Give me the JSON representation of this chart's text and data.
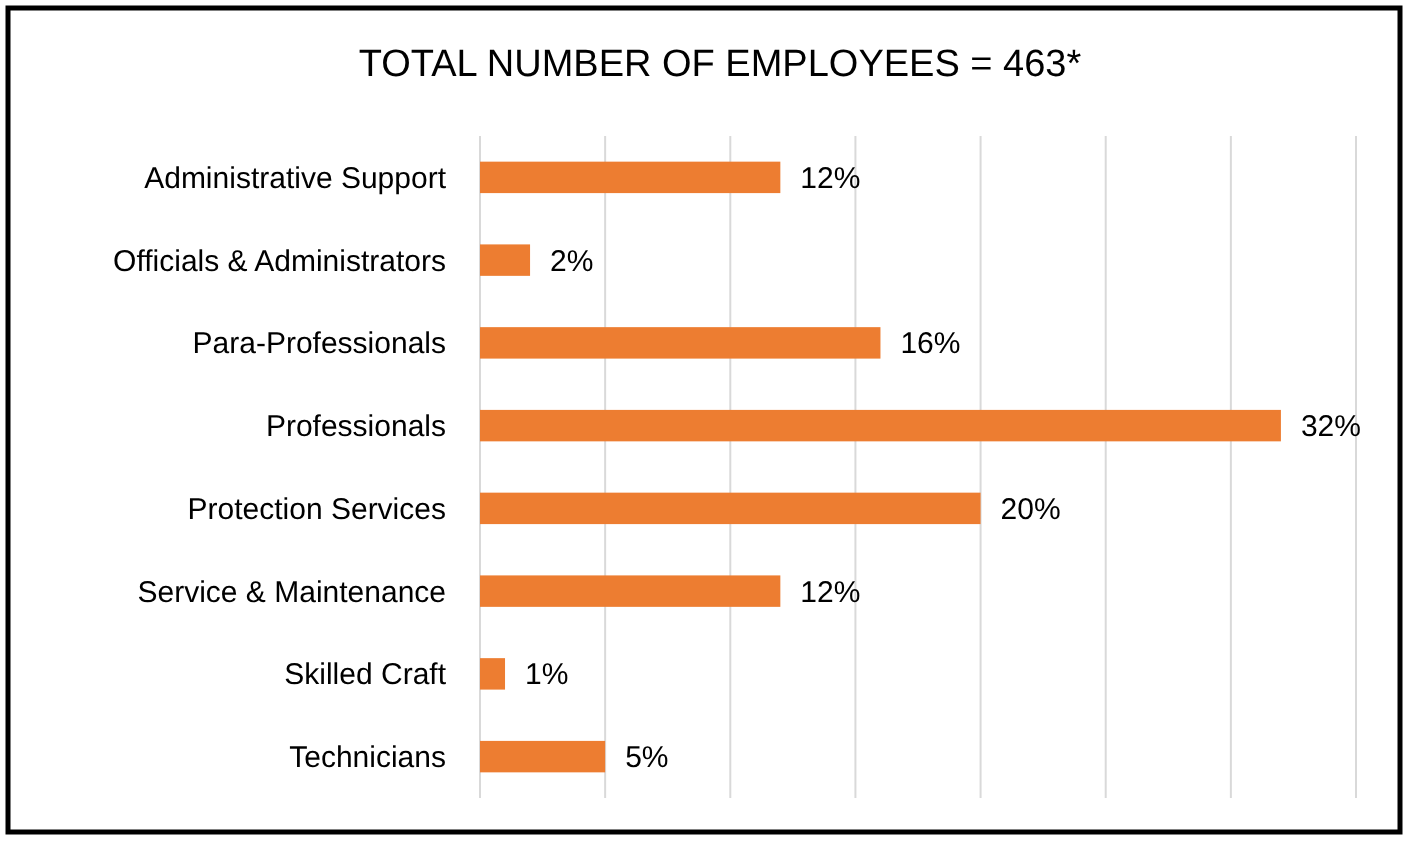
{
  "chart_data": {
    "type": "bar",
    "orientation": "horizontal",
    "title": "TOTAL NUMBER OF EMPLOYEES = 463*",
    "categories": [
      "Administrative Support",
      "Officials & Administrators",
      "Para-Professionals",
      "Professionals",
      "Protection Services",
      "Service & Maintenance",
      "Skilled Craft",
      "Technicians"
    ],
    "values": [
      12,
      2,
      16,
      32,
      20,
      12,
      1,
      5
    ],
    "value_labels": [
      "12%",
      "2%",
      "16%",
      "32%",
      "20%",
      "12%",
      "1%",
      "5%"
    ],
    "color": "#ed7d31",
    "xlim": [
      0,
      35
    ],
    "xticks": [
      {
        "value": 0,
        "label": null
      },
      {
        "value": 5,
        "label": null
      },
      {
        "value": 10,
        "label": null
      },
      {
        "value": 15,
        "label": null
      },
      {
        "value": 20,
        "label": null
      },
      {
        "value": 25,
        "label": null
      },
      {
        "value": 30,
        "label": null
      },
      {
        "value": 35,
        "label": null
      }
    ],
    "grid": "x",
    "tick_labels": "y"
  }
}
